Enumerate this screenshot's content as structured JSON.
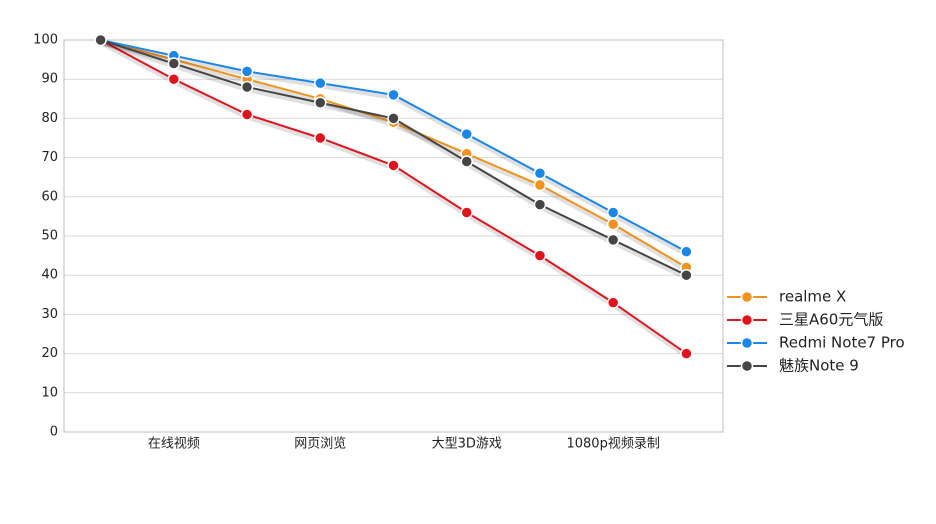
{
  "chart_data": {
    "type": "line",
    "categories": [
      null,
      "在线视频",
      null,
      "网页浏览",
      null,
      "大型3D游戏",
      null,
      "1080p视频录制",
      null
    ],
    "series": [
      {
        "name": "realme X",
        "color": "#f0921e",
        "values": [
          100,
          95,
          90,
          85,
          79,
          71,
          63,
          53,
          42
        ]
      },
      {
        "name": "三星A60元气版",
        "color": "#e0141e",
        "values": [
          100,
          90,
          81,
          75,
          68,
          56,
          45,
          33,
          20
        ]
      },
      {
        "name": "Redmi Note7 Pro",
        "color": "#1a86e8",
        "values": [
          100,
          96,
          92,
          89,
          86,
          76,
          66,
          56,
          46
        ]
      },
      {
        "name": "魅族Note 9",
        "color": "#454545",
        "values": [
          100,
          94,
          88,
          84,
          80,
          69,
          58,
          49,
          40
        ]
      }
    ],
    "ylim": [
      0,
      100
    ],
    "yticks": [
      0,
      10,
      20,
      30,
      40,
      50,
      60,
      70,
      80,
      90,
      100
    ],
    "grid": true,
    "legend": "right"
  }
}
